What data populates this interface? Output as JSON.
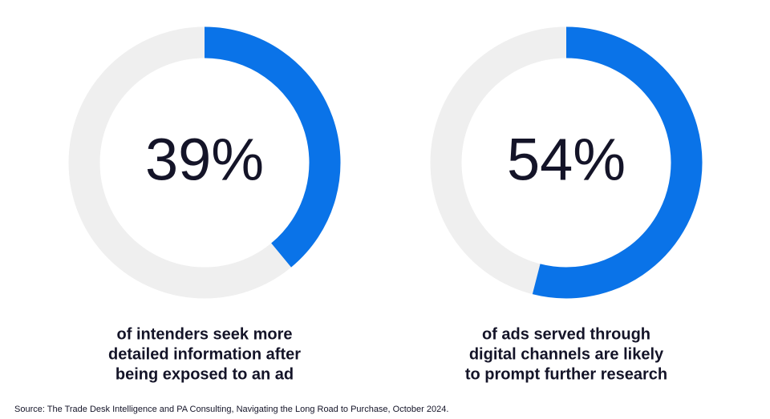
{
  "chart_data": [
    {
      "type": "donut",
      "values": [
        39
      ],
      "value_labels": [
        "39%"
      ],
      "color": "#0a73e8",
      "track_color": "#efefef",
      "caption_lines": [
        "of intenders seek more",
        "detailed information after",
        "being exposed to an ad"
      ]
    },
    {
      "type": "donut",
      "values": [
        54
      ],
      "value_labels": [
        "54%"
      ],
      "color": "#0a73e8",
      "track_color": "#efefef",
      "caption_lines": [
        "of ads served through",
        "digital channels are likely",
        "to prompt further research"
      ]
    }
  ],
  "source": "Source: The Trade Desk Intelligence and PA Consulting, Navigating the Long Road to Purchase, October 2024."
}
